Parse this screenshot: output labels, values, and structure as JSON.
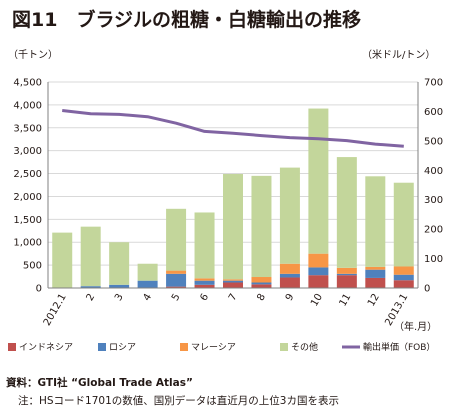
{
  "title": "図11　ブラジルの粗糖・白糖輸出の推移",
  "source_label": "資料：GTI社 “Global Trade Atlas”",
  "note_label": "注：HSコード1701の数値、国別データは直近月の上位3カ国を表示",
  "colors": {
    "インドネシア": "#c0504d",
    "ロシア": "#4f81bd",
    "マレーシア": "#f79646",
    "その他": "#c3d69b",
    "line": "#8064a2",
    "grid": "#d9d9d9"
  },
  "chart_data": {
    "type": "bar",
    "stacked": true,
    "title": "図11　ブラジルの粗糖・白糖輸出の推移",
    "left_axis_unit": "（千トン）",
    "right_axis_unit": "（米ドル/トン）",
    "x_unit": "（年.月）",
    "categories": [
      "2012.1",
      "2",
      "3",
      "4",
      "5",
      "6",
      "7",
      "8",
      "9",
      "10",
      "11",
      "12",
      "2013.1"
    ],
    "ylim_left": [
      0,
      4500
    ],
    "yticks_left": [
      "0",
      "500",
      "1,000",
      "1,500",
      "2,000",
      "2,500",
      "3,000",
      "3,500",
      "4,000",
      "4,500"
    ],
    "ylim_right": [
      0,
      700
    ],
    "yticks_right": [
      "0",
      "100",
      "200",
      "300",
      "400",
      "500",
      "600",
      "700"
    ],
    "grid": true,
    "legend_position": "bottom",
    "series": [
      {
        "name": "インドネシア",
        "values": [
          0,
          0,
          0,
          0,
          30,
          70,
          120,
          80,
          230,
          280,
          280,
          220,
          170
        ]
      },
      {
        "name": "ロシア",
        "values": [
          10,
          40,
          70,
          160,
          280,
          90,
          40,
          40,
          80,
          170,
          30,
          180,
          120
        ]
      },
      {
        "name": "マレーシア",
        "values": [
          0,
          0,
          0,
          0,
          70,
          50,
          30,
          120,
          220,
          300,
          130,
          60,
          180
        ]
      },
      {
        "name": "その他",
        "values": [
          1200,
          1300,
          930,
          370,
          1350,
          1440,
          2300,
          2210,
          2100,
          3170,
          2420,
          1980,
          1830
        ]
      },
      {
        "name": "輸出単価（FOB）",
        "type": "line",
        "axis": "right",
        "values": [
          603,
          592,
          590,
          582,
          560,
          532,
          526,
          518,
          511,
          507,
          501,
          489,
          482
        ]
      }
    ]
  }
}
